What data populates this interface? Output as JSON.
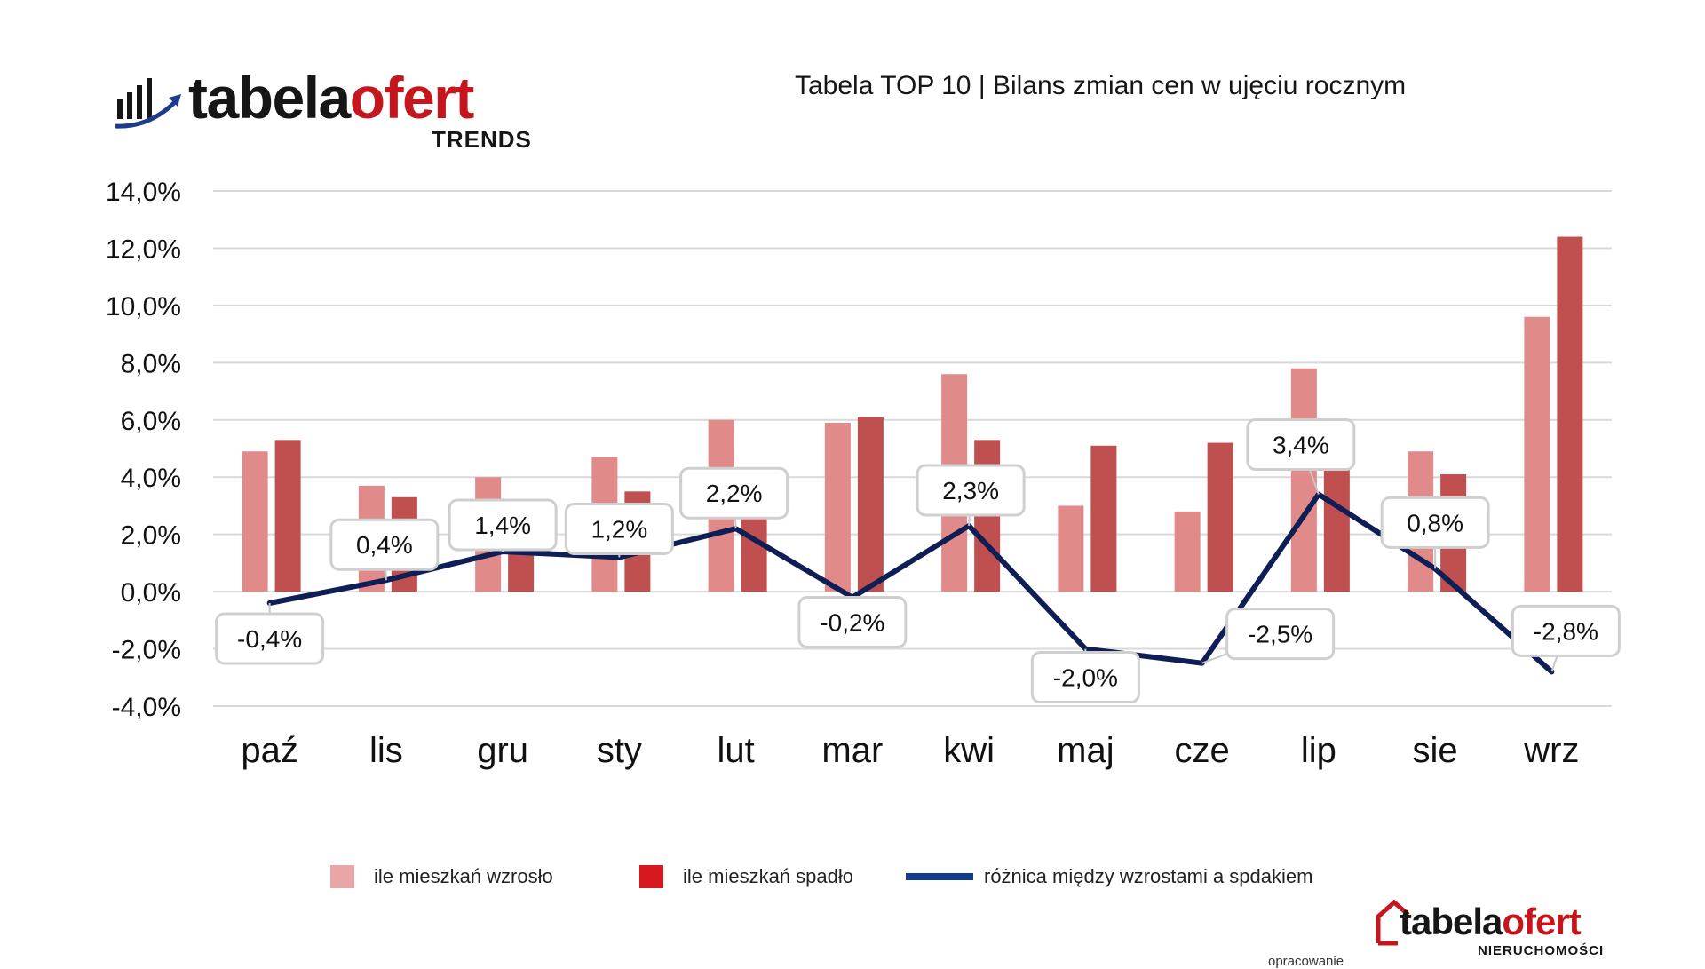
{
  "header": {
    "logo_dark": "tabela",
    "logo_red": "ofert",
    "logo_sub": "TRENDS",
    "title": "Tabela TOP 10 | Bilans zmian cen w ujęciu rocznym"
  },
  "colors": {
    "increase": "#e08a8a",
    "decrease": "#c05050",
    "line": "#0f1f55",
    "grid": "#d9d9d9",
    "brand_red": "#c4161c"
  },
  "chart_data": {
    "type": "bar",
    "categories": [
      "paź",
      "lis",
      "gru",
      "sty",
      "lut",
      "mar",
      "kwi",
      "maj",
      "cze",
      "lip",
      "sie",
      "wrz"
    ],
    "series": [
      {
        "name": "ile mieszkań wzrosło",
        "type": "bar",
        "values": [
          4.9,
          3.7,
          4.0,
          4.7,
          6.0,
          5.9,
          7.6,
          3.0,
          2.8,
          7.8,
          4.9,
          9.6
        ]
      },
      {
        "name": "ile mieszkań spadło",
        "type": "bar",
        "values": [
          5.3,
          3.3,
          2.6,
          3.5,
          3.8,
          6.1,
          5.3,
          5.1,
          5.2,
          4.4,
          4.1,
          12.4
        ]
      },
      {
        "name": "różnica między wzrostami a spdakiem",
        "type": "line",
        "values": [
          -0.4,
          0.4,
          1.4,
          1.2,
          2.2,
          -0.2,
          2.3,
          -2.0,
          -2.5,
          3.4,
          0.8,
          -2.8
        ]
      }
    ],
    "data_labels": [
      "-0,4%",
      "0,4%",
      "1,4%",
      "1,2%",
      "2,2%",
      "-0,2%",
      "2,3%",
      "-2,0%",
      "-2,5%",
      "3,4%",
      "0,8%",
      "-2,8%"
    ],
    "y_ticks": [
      14,
      12,
      10,
      8,
      6,
      4,
      2,
      0,
      -2,
      -4
    ],
    "y_tick_labels": [
      "14,0%",
      "12,0%",
      "10,0%",
      "8,0%",
      "6,0%",
      "4,0%",
      "2,0%",
      "0,0%",
      "-2,0%",
      "-4,0%"
    ],
    "ylim": [
      -4,
      14
    ],
    "title": "Tabela TOP 10 | Bilans zmian cen w ujęciu rocznym",
    "xlabel": "",
    "ylabel": "",
    "grid": true,
    "legend_position": "bottom"
  },
  "legend": {
    "increase_label": "ile mieszkań wzrosło",
    "decrease_label": "ile mieszkań spadło",
    "line_label": "różnica między wzrostami a spdakiem"
  },
  "footer": {
    "credit": "opracowanie",
    "logo_dark": "tabela",
    "logo_red": "ofert",
    "logo_sub": "NIERUCHOMOŚCI"
  }
}
